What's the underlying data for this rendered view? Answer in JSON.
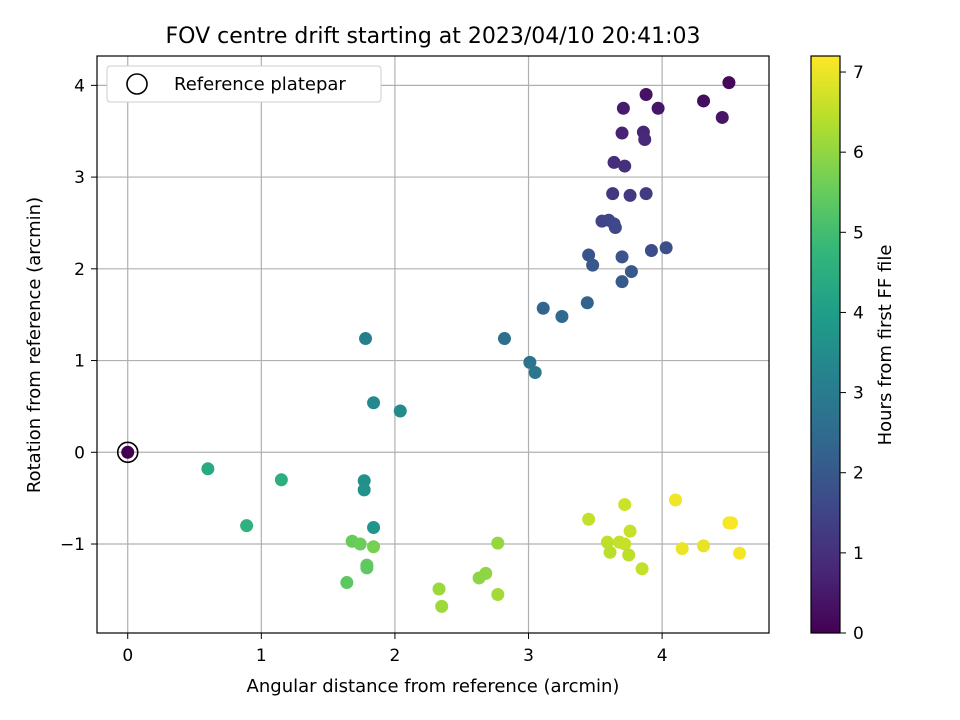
{
  "chart_data": {
    "type": "scatter",
    "title": "FOV centre drift starting at 2023/04/10 20:41:03",
    "xlabel": "Angular distance from reference (arcmin)",
    "ylabel": "Rotation from reference (arcmin)",
    "xlim": [
      -0.23,
      4.8
    ],
    "ylim": [
      -1.97,
      4.32
    ],
    "xticks": [
      0,
      1,
      2,
      3,
      4
    ],
    "yticks": [
      -1,
      0,
      1,
      2,
      3,
      4
    ],
    "xtick_labels": [
      "0",
      "1",
      "2",
      "3",
      "4"
    ],
    "ytick_labels": [
      "−1",
      "0",
      "1",
      "2",
      "3",
      "4"
    ],
    "grid": true,
    "legend": {
      "location": "upper-left",
      "entries": [
        {
          "label": "Reference platepar",
          "marker": "open-circle"
        }
      ]
    },
    "reference_point": {
      "x": 0,
      "y": 0
    },
    "colorbar": {
      "label": "Hours from first FF file",
      "colormap": "viridis",
      "range": [
        0,
        7.2
      ],
      "ticks": [
        0,
        1,
        2,
        3,
        4,
        5,
        6,
        7
      ],
      "tick_labels": [
        "0",
        "1",
        "2",
        "3",
        "4",
        "5",
        "6",
        "7"
      ],
      "colors": [
        "#440154",
        "#482878",
        "#3e4989",
        "#31688e",
        "#26828e",
        "#1f9e89",
        "#35b779",
        "#6ece58",
        "#b5de2b",
        "#fde725"
      ]
    },
    "points": [
      {
        "x": 0.0,
        "y": 0.0,
        "c": 0.0
      },
      {
        "x": 4.5,
        "y": 4.03,
        "c": 0.15
      },
      {
        "x": 4.31,
        "y": 3.83,
        "c": 0.25
      },
      {
        "x": 3.88,
        "y": 3.9,
        "c": 0.35
      },
      {
        "x": 3.97,
        "y": 3.75,
        "c": 0.45
      },
      {
        "x": 3.71,
        "y": 3.75,
        "c": 0.55
      },
      {
        "x": 4.45,
        "y": 3.65,
        "c": 0.4
      },
      {
        "x": 3.7,
        "y": 3.48,
        "c": 0.7
      },
      {
        "x": 3.86,
        "y": 3.49,
        "c": 0.75
      },
      {
        "x": 3.87,
        "y": 3.41,
        "c": 0.8
      },
      {
        "x": 3.64,
        "y": 3.16,
        "c": 0.95
      },
      {
        "x": 3.72,
        "y": 3.12,
        "c": 1.0
      },
      {
        "x": 3.63,
        "y": 2.82,
        "c": 1.15
      },
      {
        "x": 3.76,
        "y": 2.8,
        "c": 1.2
      },
      {
        "x": 3.88,
        "y": 2.82,
        "c": 1.25
      },
      {
        "x": 3.55,
        "y": 2.52,
        "c": 1.45
      },
      {
        "x": 3.6,
        "y": 2.53,
        "c": 1.5
      },
      {
        "x": 3.64,
        "y": 2.49,
        "c": 1.55
      },
      {
        "x": 3.65,
        "y": 2.45,
        "c": 1.6
      },
      {
        "x": 3.92,
        "y": 2.2,
        "c": 1.7
      },
      {
        "x": 4.03,
        "y": 2.23,
        "c": 1.75
      },
      {
        "x": 3.45,
        "y": 2.15,
        "c": 1.85
      },
      {
        "x": 3.7,
        "y": 2.13,
        "c": 1.9
      },
      {
        "x": 3.48,
        "y": 2.04,
        "c": 1.95
      },
      {
        "x": 3.77,
        "y": 1.97,
        "c": 2.0
      },
      {
        "x": 3.7,
        "y": 1.86,
        "c": 2.05
      },
      {
        "x": 3.44,
        "y": 1.63,
        "c": 2.25
      },
      {
        "x": 3.11,
        "y": 1.57,
        "c": 2.35
      },
      {
        "x": 3.25,
        "y": 1.48,
        "c": 2.45
      },
      {
        "x": 2.82,
        "y": 1.24,
        "c": 2.6
      },
      {
        "x": 3.01,
        "y": 0.98,
        "c": 2.75
      },
      {
        "x": 3.05,
        "y": 0.87,
        "c": 2.85
      },
      {
        "x": 1.78,
        "y": 1.24,
        "c": 3.1
      },
      {
        "x": 1.84,
        "y": 0.54,
        "c": 3.4
      },
      {
        "x": 2.04,
        "y": 0.45,
        "c": 3.45
      },
      {
        "x": 1.77,
        "y": -0.31,
        "c": 3.6
      },
      {
        "x": 1.77,
        "y": -0.41,
        "c": 3.65
      },
      {
        "x": 1.84,
        "y": -0.82,
        "c": 3.75
      },
      {
        "x": 0.6,
        "y": -0.18,
        "c": 4.35
      },
      {
        "x": 1.15,
        "y": -0.3,
        "c": 4.5
      },
      {
        "x": 0.89,
        "y": -0.8,
        "c": 4.6
      },
      {
        "x": 1.68,
        "y": -0.97,
        "c": 5.5
      },
      {
        "x": 1.74,
        "y": -1.0,
        "c": 5.55
      },
      {
        "x": 1.84,
        "y": -1.03,
        "c": 5.7
      },
      {
        "x": 1.79,
        "y": -1.23,
        "c": 5.45
      },
      {
        "x": 1.79,
        "y": -1.26,
        "c": 5.4
      },
      {
        "x": 1.64,
        "y": -1.42,
        "c": 5.35
      },
      {
        "x": 2.77,
        "y": -0.99,
        "c": 6.05
      },
      {
        "x": 2.68,
        "y": -1.32,
        "c": 6.0
      },
      {
        "x": 2.63,
        "y": -1.37,
        "c": 5.95
      },
      {
        "x": 2.33,
        "y": -1.49,
        "c": 6.1
      },
      {
        "x": 2.35,
        "y": -1.68,
        "c": 6.15
      },
      {
        "x": 2.77,
        "y": -1.55,
        "c": 6.2
      },
      {
        "x": 3.45,
        "y": -0.73,
        "c": 6.55
      },
      {
        "x": 3.72,
        "y": -0.57,
        "c": 6.65
      },
      {
        "x": 3.76,
        "y": -0.86,
        "c": 6.6
      },
      {
        "x": 3.59,
        "y": -0.98,
        "c": 6.5
      },
      {
        "x": 3.68,
        "y": -0.98,
        "c": 6.55
      },
      {
        "x": 3.72,
        "y": -1.0,
        "c": 6.6
      },
      {
        "x": 3.61,
        "y": -1.09,
        "c": 6.45
      },
      {
        "x": 3.75,
        "y": -1.12,
        "c": 6.5
      },
      {
        "x": 3.85,
        "y": -1.27,
        "c": 6.55
      },
      {
        "x": 4.1,
        "y": -0.52,
        "c": 7.05
      },
      {
        "x": 4.5,
        "y": -0.77,
        "c": 7.1
      },
      {
        "x": 4.52,
        "y": -0.77,
        "c": 7.15
      },
      {
        "x": 4.15,
        "y": -1.05,
        "c": 7.0
      },
      {
        "x": 4.31,
        "y": -1.02,
        "c": 6.95
      },
      {
        "x": 4.58,
        "y": -1.1,
        "c": 7.1
      }
    ]
  }
}
